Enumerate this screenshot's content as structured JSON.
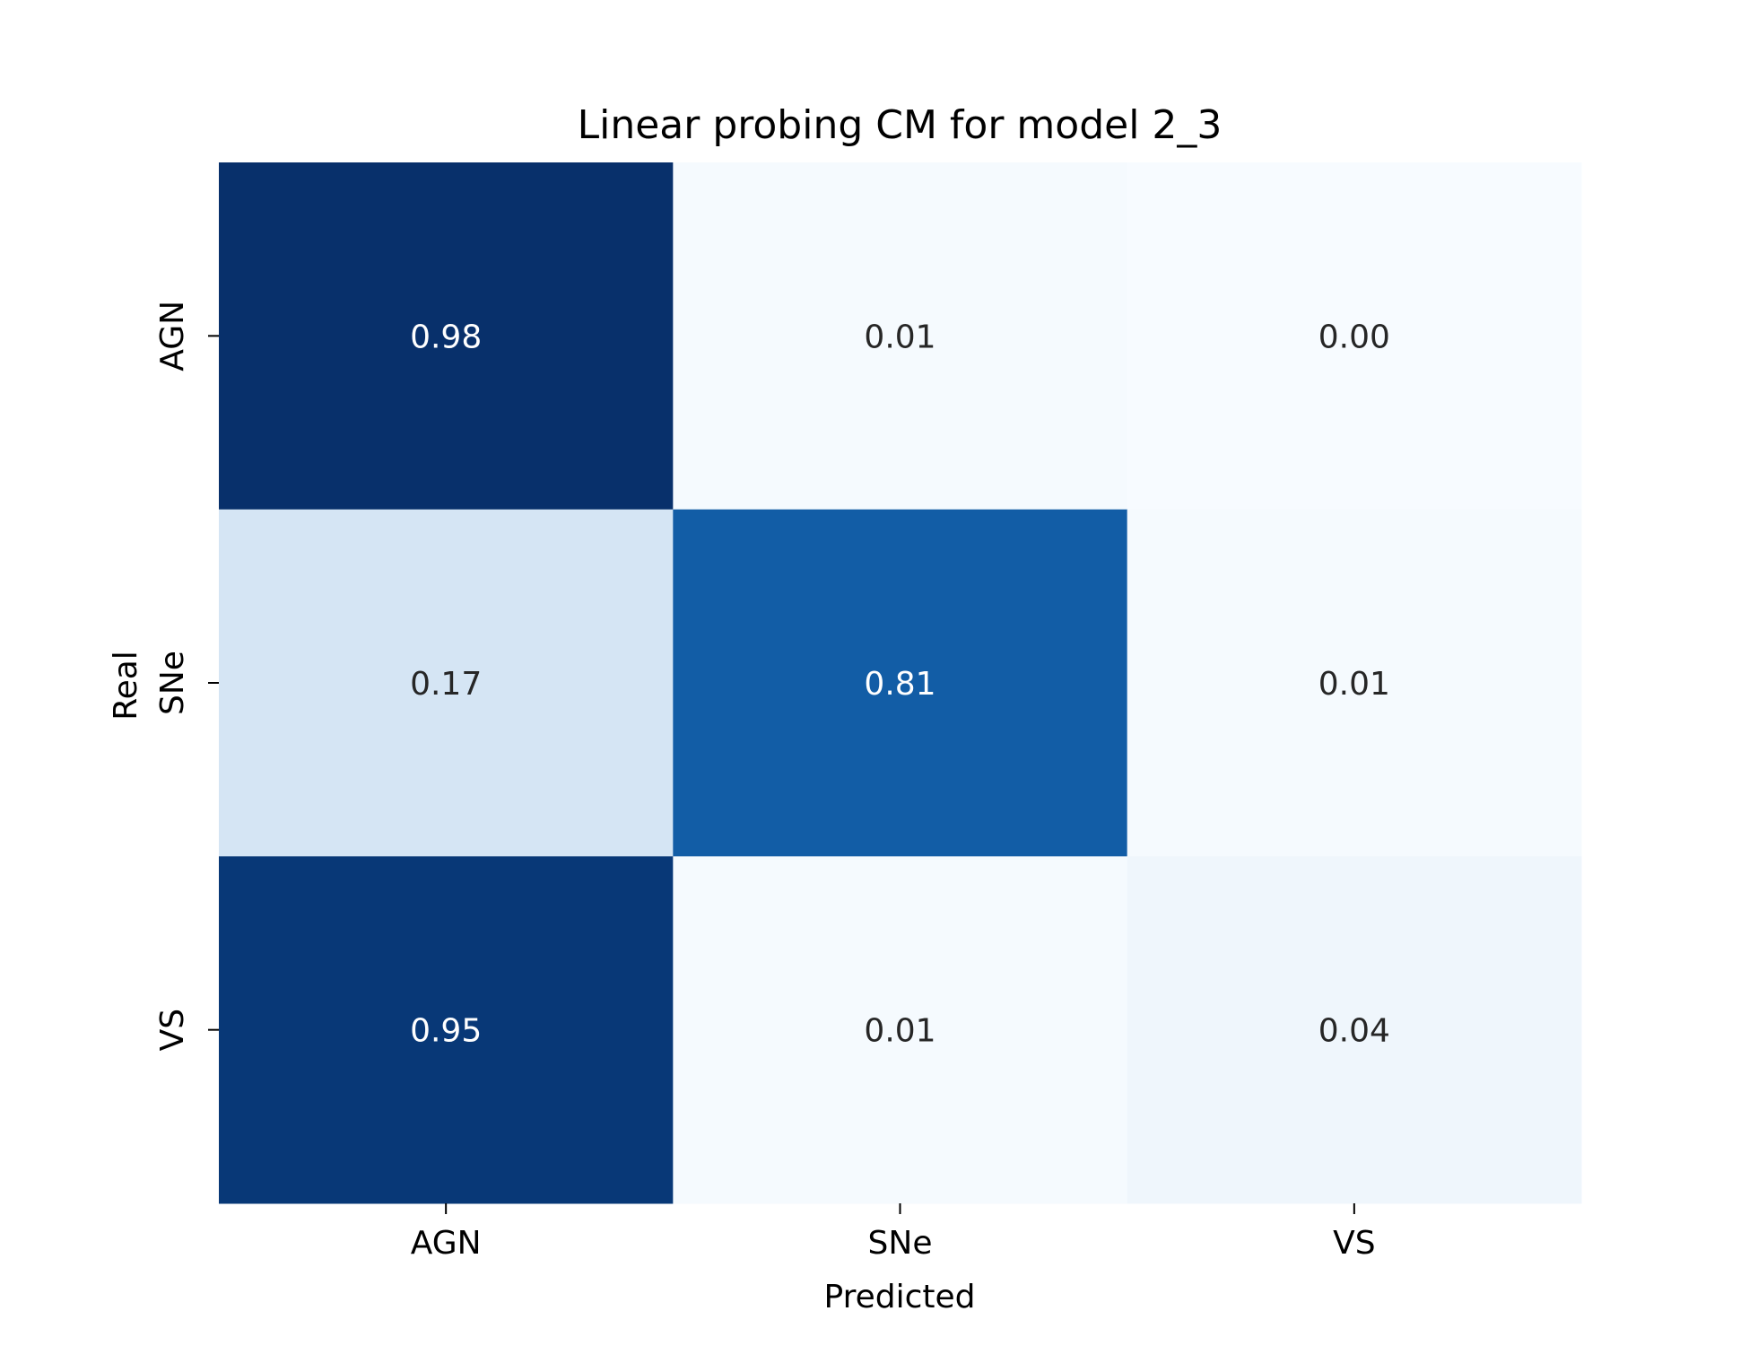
{
  "chart_data": {
    "type": "heatmap",
    "title": "Linear probing CM for model 2_3",
    "xlabel": "Predicted",
    "ylabel": "Real",
    "x_categories": [
      "AGN",
      "SNe",
      "VS"
    ],
    "y_categories": [
      "AGN",
      "SNe",
      "VS"
    ],
    "values": [
      [
        0.98,
        0.01,
        0.0
      ],
      [
        0.17,
        0.81,
        0.01
      ],
      [
        0.95,
        0.01,
        0.04
      ]
    ],
    "value_format": "0.00",
    "colormap": "Blues",
    "colorbar": false,
    "grid": false,
    "colors": {
      "dark_text": "#262626",
      "light_text": "#ffffff"
    }
  }
}
